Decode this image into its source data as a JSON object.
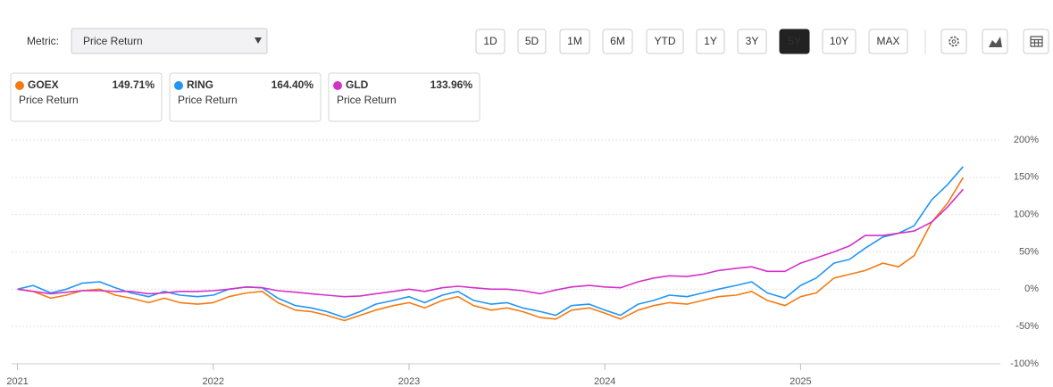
{
  "ui": {
    "metric_label": "Metric:",
    "metric_value": "Price Return",
    "ranges": [
      "1D",
      "5D",
      "1M",
      "6M",
      "YTD",
      "1Y",
      "3Y",
      "5Y",
      "10Y",
      "MAX"
    ],
    "selected_range": "5Y"
  },
  "chart_data": {
    "type": "line",
    "x": [
      2021.0,
      2021.08,
      2021.17,
      2021.25,
      2021.33,
      2021.42,
      2021.5,
      2021.58,
      2021.67,
      2021.75,
      2021.83,
      2021.92,
      2022.0,
      2022.08,
      2022.17,
      2022.25,
      2022.33,
      2022.42,
      2022.5,
      2022.58,
      2022.67,
      2022.75,
      2022.83,
      2022.92,
      2023.0,
      2023.08,
      2023.17,
      2023.25,
      2023.33,
      2023.42,
      2023.5,
      2023.58,
      2023.67,
      2023.75,
      2023.83,
      2023.92,
      2024.0,
      2024.08,
      2024.17,
      2024.25,
      2024.33,
      2024.42,
      2024.5,
      2024.58,
      2024.67,
      2024.75,
      2024.83,
      2024.92,
      2025.0,
      2025.08,
      2025.17,
      2025.25,
      2025.33,
      2025.42,
      2025.5,
      2025.58,
      2025.67,
      2025.75,
      2025.83
    ],
    "series": [
      {
        "name": "GOEX",
        "metric": "Price Return",
        "last_value_label": "149.71%",
        "color": "#f47b12",
        "values": [
          0,
          -3,
          -12,
          -8,
          -2,
          0,
          -8,
          -12,
          -18,
          -12,
          -18,
          -20,
          -18,
          -10,
          -5,
          -3,
          -18,
          -28,
          -30,
          -35,
          -42,
          -35,
          -28,
          -22,
          -18,
          -25,
          -15,
          -10,
          -22,
          -28,
          -25,
          -30,
          -38,
          -40,
          -28,
          -25,
          -32,
          -40,
          -28,
          -22,
          -18,
          -20,
          -15,
          -10,
          -8,
          -3,
          -15,
          -22,
          -10,
          -5,
          15,
          20,
          25,
          35,
          30,
          45,
          90,
          115,
          149.71
        ]
      },
      {
        "name": "RING",
        "metric": "Price Return",
        "last_value_label": "164.40%",
        "color": "#2196f3",
        "values": [
          0,
          5,
          -5,
          0,
          8,
          10,
          2,
          -5,
          -10,
          -3,
          -8,
          -10,
          -8,
          0,
          3,
          2,
          -12,
          -22,
          -25,
          -30,
          -38,
          -30,
          -20,
          -15,
          -10,
          -18,
          -8,
          -3,
          -15,
          -20,
          -18,
          -25,
          -30,
          -35,
          -22,
          -20,
          -28,
          -35,
          -20,
          -15,
          -8,
          -10,
          -5,
          0,
          5,
          10,
          -5,
          -12,
          5,
          15,
          35,
          40,
          55,
          70,
          75,
          85,
          120,
          140,
          164.4
        ]
      },
      {
        "name": "GLD",
        "metric": "Price Return",
        "last_value_label": "133.96%",
        "color": "#d332c7",
        "values": [
          0,
          -3,
          -6,
          -4,
          -2,
          -2,
          -3,
          -3,
          -6,
          -5,
          -3,
          -3,
          -2,
          0,
          3,
          2,
          -2,
          -4,
          -6,
          -8,
          -10,
          -9,
          -6,
          -3,
          0,
          -3,
          2,
          4,
          2,
          0,
          0,
          -2,
          -6,
          -1,
          3,
          5,
          3,
          2,
          10,
          15,
          18,
          17,
          20,
          25,
          28,
          30,
          24,
          24,
          35,
          42,
          50,
          58,
          72,
          72,
          75,
          78,
          90,
          110,
          133.96
        ]
      }
    ],
    "xlim": [
      2020.97,
      2026.02
    ],
    "xticks": [
      2021,
      2022,
      2023,
      2024,
      2025
    ],
    "ylim": [
      -100,
      200
    ],
    "yticks": [
      {
        "value": -100,
        "label": "-100%"
      },
      {
        "value": -50,
        "label": "-50%"
      },
      {
        "value": 0,
        "label": "0%"
      },
      {
        "value": 50,
        "label": "50%"
      },
      {
        "value": 100,
        "label": "100%"
      },
      {
        "value": 150,
        "label": "150%"
      },
      {
        "value": 200,
        "label": "200%"
      }
    ],
    "grid": true
  }
}
